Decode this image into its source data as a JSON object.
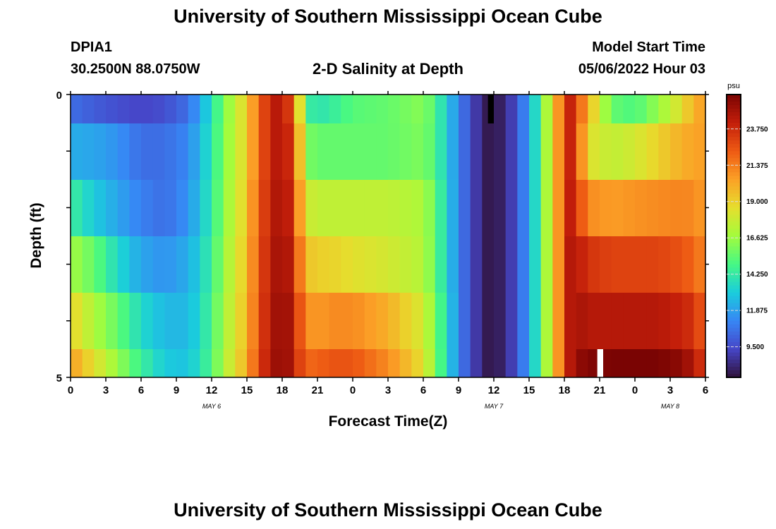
{
  "page": {
    "title": "University of Southern Mississippi Ocean Cube",
    "station_id": "DPIA1",
    "station_coords": "30.2500N  88.0750W",
    "subtitle": "2-D Salinity at Depth",
    "model_start_label": "Model Start Time",
    "model_start_value": "05/06/2022 Hour 03",
    "footer_title": "University of Southern Mississippi Ocean Cube"
  },
  "chart_data": {
    "type": "heatmap",
    "title": "2-D Salinity at Depth",
    "xlabel": "Forecast Time(Z)",
    "ylabel": "Depth (ft)",
    "x_tick_labels": [
      "0",
      "3",
      "6",
      "9",
      "12",
      "15",
      "18",
      "21",
      "0",
      "3",
      "6",
      "9",
      "12",
      "15",
      "18",
      "21",
      "0",
      "3",
      "6"
    ],
    "x_range_hours": [
      0,
      54
    ],
    "date_labels": [
      {
        "text": "MAY 6",
        "hour": 12
      },
      {
        "text": "MAY 7",
        "hour": 36
      },
      {
        "text": "MAY 8",
        "hour": 51
      }
    ],
    "y_tick_labels": [
      "0",
      "5"
    ],
    "y_range": [
      0,
      5
    ],
    "colorbar": {
      "unit": "psu",
      "tick_labels": [
        "23.750",
        "21.375",
        "19.000",
        "16.625",
        "14.250",
        "11.875",
        "9.500"
      ],
      "range": [
        7.5,
        26.0
      ]
    },
    "rows": [
      {
        "depth": "0-0.5",
        "hours": [
          0,
          2,
          4,
          6,
          8,
          10,
          11,
          12,
          13,
          14,
          15,
          15.5,
          16,
          16.5,
          17,
          18,
          19,
          19.5,
          20,
          21,
          22,
          24,
          27,
          30,
          31,
          32,
          33,
          34,
          35,
          35.5,
          36,
          37,
          38,
          39,
          40,
          41,
          42,
          42.5,
          43,
          44,
          46,
          48,
          50,
          52,
          53,
          54
        ],
        "values": [
          10.5,
          10,
          9.6,
          9.3,
          9.6,
          10.5,
          12,
          13.8,
          15.8,
          17.5,
          19,
          20.5,
          21.8,
          23,
          24,
          24.8,
          22,
          18.5,
          14.5,
          14,
          14.2,
          15.2,
          15.5,
          16.2,
          15,
          13,
          11.2,
          9.5,
          8.3,
          7.8,
          7.7,
          8.3,
          9.8,
          12,
          15,
          19,
          22.5,
          24,
          23,
          20,
          15.5,
          15,
          16.5,
          18.5,
          20,
          20.5
        ]
      },
      {
        "depth": "0.5-1.5",
        "hours": [
          0,
          2,
          4,
          6,
          8,
          10,
          11,
          12,
          13,
          14,
          15,
          15.5,
          16,
          16.5,
          17,
          18,
          19,
          19.5,
          20,
          21,
          22,
          24,
          27,
          30,
          31,
          32,
          33,
          34,
          35,
          35.5,
          36,
          37,
          38,
          39,
          40,
          41,
          42,
          42.5,
          43,
          44,
          46,
          48,
          50,
          52,
          53,
          54
        ],
        "values": [
          12.2,
          12,
          11.5,
          10.5,
          10.5,
          11.2,
          12.5,
          14,
          16,
          17.5,
          19,
          20.5,
          21.8,
          23,
          24,
          24.8,
          23,
          19.5,
          16,
          15.5,
          15.5,
          15.5,
          15.5,
          16,
          15,
          13,
          11.2,
          9.5,
          8.3,
          7.8,
          7.7,
          8.3,
          9.8,
          12,
          15,
          19,
          22.5,
          24,
          23,
          18.5,
          17.5,
          18,
          19,
          20,
          20.3,
          20.5
        ]
      },
      {
        "depth": "1.5-2.5",
        "hours": [
          0,
          2,
          4,
          6,
          8,
          10,
          11,
          12,
          13,
          14,
          15,
          15.5,
          16,
          16.5,
          17,
          18,
          19,
          19.5,
          20,
          21,
          22,
          24,
          27,
          30,
          31,
          32,
          33,
          34,
          35,
          35.5,
          36,
          37,
          38,
          39,
          40,
          41,
          42,
          42.5,
          43,
          44,
          46,
          48,
          50,
          52,
          53,
          54
        ],
        "values": [
          14.5,
          13,
          12,
          11,
          10.5,
          11.5,
          12.8,
          14.2,
          16.2,
          17.8,
          19.2,
          20.8,
          22,
          23.2,
          24.2,
          25,
          23.5,
          20.5,
          18,
          17.5,
          17.5,
          17.5,
          17.5,
          17,
          15.5,
          13.2,
          11.2,
          9.5,
          8.3,
          7.8,
          7.7,
          8.3,
          9.8,
          12,
          15,
          19,
          22.5,
          24.2,
          23.5,
          21,
          20.5,
          20.8,
          21,
          21.2,
          21,
          20.5
        ]
      },
      {
        "depth": "2.5-3.5",
        "hours": [
          0,
          2,
          4,
          6,
          8,
          10,
          11,
          12,
          13,
          14,
          15,
          15.5,
          16,
          16.5,
          17,
          18,
          19,
          19.5,
          20,
          21,
          22,
          24,
          27,
          30,
          31,
          32,
          33,
          34,
          35,
          35.5,
          36,
          37,
          38,
          39,
          40,
          41,
          42,
          42.5,
          43,
          44,
          46,
          48,
          50,
          52,
          53,
          54
        ],
        "values": [
          16.8,
          15.5,
          13.5,
          12,
          11.5,
          12.2,
          13.2,
          14.5,
          16.5,
          18,
          19.5,
          21,
          22.2,
          23.4,
          24.4,
          25.2,
          24,
          21.5,
          19.5,
          19,
          19,
          18.5,
          18,
          17.2,
          15.5,
          13.2,
          11.2,
          9.5,
          8.3,
          7.8,
          7.7,
          8.3,
          9.8,
          12,
          15,
          19,
          22.5,
          24.5,
          24.5,
          23.5,
          23,
          23,
          23,
          22.5,
          22,
          21
        ]
      },
      {
        "depth": "3.5-4.5",
        "hours": [
          0,
          2,
          4,
          6,
          8,
          10,
          11,
          12,
          13,
          14,
          15,
          15.5,
          16,
          16.5,
          17,
          18,
          19,
          19.5,
          20,
          21,
          22,
          24,
          27,
          30,
          31,
          32,
          33,
          34,
          35,
          35.5,
          36,
          37,
          38,
          39,
          40,
          41,
          42,
          42.5,
          43,
          44,
          46,
          48,
          50,
          52,
          53,
          54
        ],
        "values": [
          19,
          17,
          15.5,
          13.5,
          12.5,
          12.5,
          13.5,
          14.8,
          16.8,
          18.2,
          19.8,
          21.2,
          22.5,
          23.6,
          24.6,
          25.4,
          24.5,
          22.5,
          21,
          20.5,
          21,
          21,
          20,
          18,
          16,
          13.5,
          11.2,
          9.5,
          8.3,
          7.8,
          7.7,
          8.3,
          9.8,
          12,
          15,
          19,
          22.5,
          24.5,
          25,
          24.5,
          24.5,
          24.5,
          24.5,
          24,
          23.5,
          22
        ]
      },
      {
        "depth": "4.5-5",
        "hours": [
          0,
          2,
          4,
          6,
          8,
          10,
          11,
          12,
          13,
          14,
          15,
          15.5,
          16,
          16.5,
          17,
          18,
          19,
          19.5,
          20,
          21,
          22,
          24,
          27,
          30,
          31,
          32,
          33,
          34,
          35,
          35.5,
          36,
          37,
          38,
          39,
          40,
          41,
          42,
          42.5,
          43,
          44,
          46,
          48,
          50,
          52,
          53,
          54
        ],
        "values": [
          20.5,
          18.5,
          16.5,
          14.5,
          13,
          12.8,
          13.8,
          15,
          17,
          18.5,
          20,
          21.5,
          22.8,
          23.8,
          24.8,
          25.5,
          24.5,
          23,
          22,
          22,
          22.5,
          22.5,
          21,
          18.5,
          16.2,
          13.5,
          11.2,
          9.5,
          8.3,
          7.8,
          7.7,
          8.3,
          9.8,
          12,
          15,
          19,
          22.5,
          24.5,
          25.3,
          25.8,
          26,
          26,
          26,
          25.5,
          24.5,
          23
        ]
      }
    ],
    "missing_cells": [
      {
        "hour_start": 35.5,
        "hour_end": 36,
        "depth_row": "0-0.5",
        "color": "#000000"
      },
      {
        "hour_start": 44.8,
        "hour_end": 45.3,
        "depth_row": "4.5-5",
        "color": "#ffffff"
      }
    ]
  }
}
